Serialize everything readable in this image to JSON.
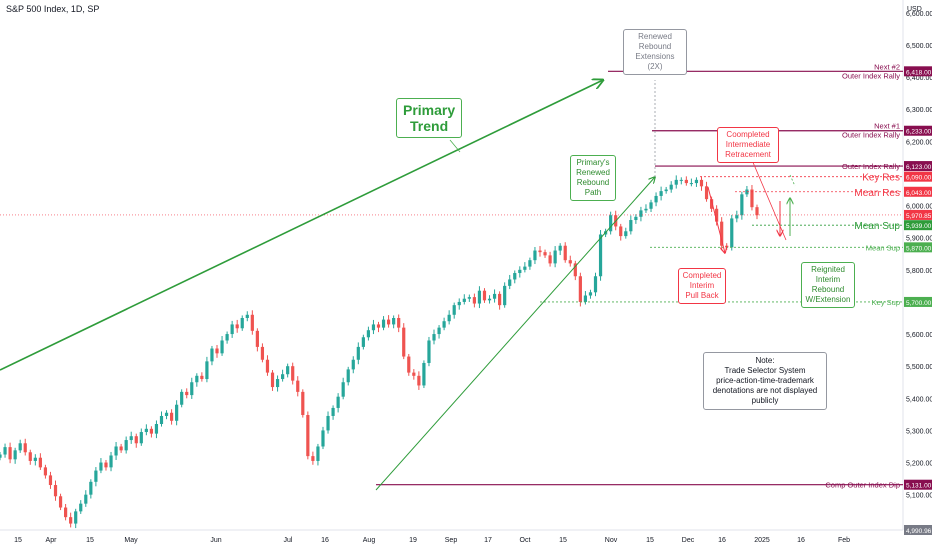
{
  "title": "S&P 500 Index, 1D, SP",
  "currency": "USD",
  "colors": {
    "up": "#26a69a",
    "down": "#ef5350",
    "green": "#2e9c3a",
    "red": "#f23645",
    "maroon": "#880e4f",
    "gray": "#787b86"
  },
  "chart_data": {
    "type": "candlestick",
    "x_ticks": [
      "15",
      "Apr",
      "15",
      "May",
      "Jun",
      "Jul",
      "16",
      "Aug",
      "19",
      "Sep",
      "17",
      "Oct",
      "15",
      "Nov",
      "15",
      "Dec",
      "16",
      "2025",
      "16",
      "Feb"
    ],
    "y_ticks": [
      "6,600.00",
      "6,500.00",
      "6,400.00",
      "6,300.00",
      "6,200.00",
      "6,000.00",
      "5,900.00",
      "5,800.00",
      "5,600.00",
      "5,500.00",
      "5,400.00",
      "5,300.00",
      "5,200.00",
      "5,100.00"
    ],
    "ylim": [
      4990,
      6640
    ],
    "levels": [
      {
        "label": "Next #2",
        "sublabel": "Outer Index Rally",
        "value": "6,418.00",
        "color": "#880e4f"
      },
      {
        "label": "Next #1",
        "sublabel": "Outer Index Rally",
        "value": "6,233.00",
        "color": "#880e4f"
      },
      {
        "label": "Outer Index Rally",
        "value": "6,123.00",
        "color": "#880e4f"
      },
      {
        "label": "Key Res",
        "value": "6,090.00",
        "color": "#f23645"
      },
      {
        "label": "Mean Res",
        "value": "6,043.00",
        "color": "#f23645"
      },
      {
        "label": "Mean Sup",
        "value": "5,939.00",
        "color": "#2e9c3a"
      },
      {
        "label": "Mean Sup",
        "value": "5,870.00",
        "color": "#4caf50"
      },
      {
        "label": "Key Sup",
        "value": "5,700.00",
        "color": "#4caf50"
      },
      {
        "label": "Comp Outer Index Dip",
        "value": "5,131.00",
        "color": "#880e4f"
      }
    ],
    "last_price": "5,970.85",
    "bottom_value": "4,990.96",
    "series": [
      {
        "close": [
          5225,
          5248,
          5210,
          5238,
          5260,
          5232,
          5205,
          5215,
          5185,
          5160,
          5130,
          5095,
          5060,
          5030,
          5010,
          5048,
          5072,
          5100,
          5140,
          5175,
          5200,
          5185,
          5222,
          5250,
          5238,
          5270,
          5282,
          5260,
          5295,
          5305,
          5290,
          5320,
          5345,
          5355,
          5330,
          5380,
          5420,
          5410,
          5450,
          5470,
          5460,
          5515,
          5555,
          5540,
          5580,
          5600,
          5630,
          5618,
          5650,
          5660,
          5610,
          5560,
          5520,
          5480,
          5435,
          5460,
          5475,
          5500,
          5455,
          5420,
          5348,
          5220,
          5205,
          5250,
          5300,
          5345,
          5370,
          5405,
          5450,
          5490,
          5520,
          5560,
          5590,
          5612,
          5630,
          5620,
          5645,
          5630,
          5650,
          5620,
          5530,
          5480,
          5470,
          5440,
          5510,
          5580,
          5600,
          5620,
          5640,
          5660,
          5690,
          5700,
          5710,
          5715,
          5695,
          5735,
          5705,
          5710,
          5725,
          5690,
          5750,
          5770,
          5790,
          5800,
          5810,
          5830,
          5860,
          5855,
          5845,
          5820,
          5860,
          5875,
          5830,
          5820,
          5780,
          5700,
          5720,
          5730,
          5780,
          5910,
          5920,
          5970,
          5935,
          5905,
          5920,
          5955,
          5965,
          5985,
          5990,
          6010,
          6030,
          6045,
          6050,
          6065,
          6080,
          6080,
          6070,
          6070,
          6080,
          6060,
          6020,
          5990,
          5950,
          5875,
          5870,
          5960,
          5970,
          6035,
          6050,
          5995,
          5970
        ]
      }
    ],
    "annotations": [
      "Primary Trend",
      "Renewed Rebound Extensions (2X)",
      "Primary's Renewed Rebound Path",
      "Coompleted Intermediate Retracement",
      "Completed Interim Pull Back",
      "Reignited Interim Rebound W/Extension"
    ]
  },
  "annotations": {
    "primary": [
      "Primary",
      "Trend"
    ],
    "renewed": [
      "Renewed",
      "Rebound",
      "Extensions (2X)"
    ],
    "path": [
      "Primary's",
      "Renewed",
      "Rebound",
      "Path"
    ],
    "retracement": [
      "Coompleted",
      "Intermediate",
      "Retracement"
    ],
    "pullback": [
      "Completed",
      "Interim",
      "Pull Back"
    ],
    "reignited": [
      "Reignited",
      "Interim",
      "Rebound",
      "W/Extension"
    ],
    "note": [
      "Note:",
      "Trade Selector System",
      "price-action-time-trademark",
      "denotations are not displayed publicly"
    ]
  }
}
